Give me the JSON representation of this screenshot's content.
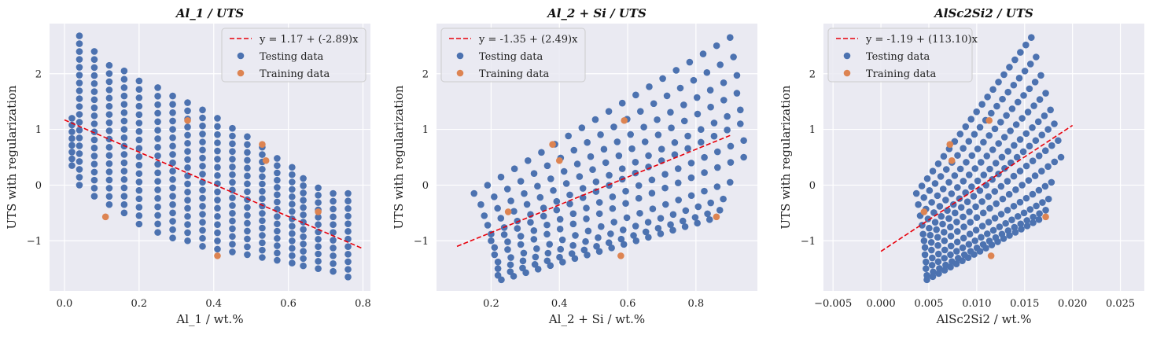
{
  "colors": {
    "plot_bg": "#EAEAF2",
    "grid": "#FFFFFF",
    "testing": "#4C72B0",
    "training": "#DD8452",
    "fit_line": "#E8000B",
    "legend_bg": "#EAEAF2",
    "legend_border": "#CCCCCC"
  },
  "chart_data": [
    {
      "type": "scatter",
      "title": "Al_1 / UTS",
      "xlabel": "Al_1 / wt.%",
      "ylabel": "UTS with regularization",
      "xlim": [
        -0.04,
        0.82
      ],
      "ylim": [
        -1.9,
        2.9
      ],
      "xticks": [
        0.0,
        0.2,
        0.4,
        0.6,
        0.8
      ],
      "xtick_labels": [
        "0.0",
        "0.2",
        "0.4",
        "0.6",
        "0.8"
      ],
      "yticks": [
        -1,
        0,
        1,
        2
      ],
      "ytick_labels": [
        "−1",
        "0",
        "1",
        "2"
      ],
      "grid": true,
      "legend_position": "top-right",
      "fit": {
        "label": "y = 1.17 + (-2.89)x",
        "intercept": 1.17,
        "slope": -2.89,
        "x_range": [
          0.0,
          0.8
        ]
      },
      "series": [
        {
          "name": "Testing data",
          "columns": [
            {
              "x": 0.02,
              "y_min": 0.35,
              "y_max": 1.2,
              "n": 8
            },
            {
              "x": 0.04,
              "y_min": 0.0,
              "y_max": 2.68,
              "n": 20
            },
            {
              "x": 0.08,
              "y_min": -0.2,
              "y_max": 2.4,
              "n": 19
            },
            {
              "x": 0.12,
              "y_min": -0.35,
              "y_max": 2.15,
              "n": 18
            },
            {
              "x": 0.16,
              "y_min": -0.5,
              "y_max": 2.05,
              "n": 18
            },
            {
              "x": 0.2,
              "y_min": -0.7,
              "y_max": 1.87,
              "n": 18
            },
            {
              "x": 0.25,
              "y_min": -0.85,
              "y_max": 1.75,
              "n": 18
            },
            {
              "x": 0.29,
              "y_min": -0.95,
              "y_max": 1.6,
              "n": 18
            },
            {
              "x": 0.33,
              "y_min": -1.0,
              "y_max": 1.48,
              "n": 18
            },
            {
              "x": 0.37,
              "y_min": -1.1,
              "y_max": 1.35,
              "n": 18
            },
            {
              "x": 0.41,
              "y_min": -1.15,
              "y_max": 1.2,
              "n": 17
            },
            {
              "x": 0.45,
              "y_min": -1.2,
              "y_max": 1.02,
              "n": 17
            },
            {
              "x": 0.49,
              "y_min": -1.25,
              "y_max": 0.87,
              "n": 16
            },
            {
              "x": 0.53,
              "y_min": -1.3,
              "y_max": 0.68,
              "n": 16
            },
            {
              "x": 0.57,
              "y_min": -1.35,
              "y_max": 0.48,
              "n": 15
            },
            {
              "x": 0.61,
              "y_min": -1.4,
              "y_max": 0.32,
              "n": 14
            },
            {
              "x": 0.64,
              "y_min": -1.45,
              "y_max": 0.12,
              "n": 13
            },
            {
              "x": 0.68,
              "y_min": -1.5,
              "y_max": -0.05,
              "n": 12
            },
            {
              "x": 0.72,
              "y_min": -1.55,
              "y_max": -0.15,
              "n": 11
            },
            {
              "x": 0.76,
              "y_min": -1.65,
              "y_max": -0.15,
              "n": 12
            }
          ]
        },
        {
          "name": "Training data",
          "x": [
            0.11,
            0.33,
            0.41,
            0.53,
            0.54,
            0.68
          ],
          "y": [
            -0.57,
            1.16,
            -1.27,
            0.73,
            0.44,
            -0.48
          ]
        }
      ]
    },
    {
      "type": "scatter",
      "title": "Al_2 + Si / UTS",
      "xlabel": "Al_2 + Si / wt.%",
      "ylabel": "UTS with regularization",
      "xlim": [
        0.04,
        0.98
      ],
      "ylim": [
        -1.9,
        2.9
      ],
      "xticks": [
        0.2,
        0.4,
        0.6,
        0.8
      ],
      "xtick_labels": [
        "0.2",
        "0.4",
        "0.6",
        "0.8"
      ],
      "yticks": [
        -1,
        0,
        1,
        2
      ],
      "ytick_labels": [
        "−1",
        "0",
        "1",
        "2"
      ],
      "grid": true,
      "legend_position": "top-left",
      "fit": {
        "label": "y = -1.35 + (2.49)x",
        "intercept": -1.35,
        "slope": 2.49,
        "x_range": [
          0.1,
          0.9
        ]
      },
      "series": [
        {
          "name": "Testing data",
          "rows": [
            {
              "x_start": 0.15,
              "y_start": -0.15,
              "x_end": 0.9,
              "y_end": 2.65,
              "n": 20
            },
            {
              "x_start": 0.17,
              "y_start": -0.35,
              "x_end": 0.91,
              "y_end": 2.3,
              "n": 20
            },
            {
              "x_start": 0.18,
              "y_start": -0.55,
              "x_end": 0.92,
              "y_end": 1.97,
              "n": 20
            },
            {
              "x_start": 0.19,
              "y_start": -0.72,
              "x_end": 0.92,
              "y_end": 1.65,
              "n": 20
            },
            {
              "x_start": 0.2,
              "y_start": -0.88,
              "x_end": 0.93,
              "y_end": 1.35,
              "n": 20
            },
            {
              "x_start": 0.2,
              "y_start": -1.0,
              "x_end": 0.93,
              "y_end": 1.1,
              "n": 20
            },
            {
              "x_start": 0.21,
              "y_start": -1.12,
              "x_end": 0.94,
              "y_end": 0.8,
              "n": 20
            },
            {
              "x_start": 0.21,
              "y_start": -1.25,
              "x_end": 0.94,
              "y_end": 0.5,
              "n": 20
            },
            {
              "x_start": 0.22,
              "y_start": -1.38,
              "x_end": 0.9,
              "y_end": 0.05,
              "n": 19
            },
            {
              "x_start": 0.22,
              "y_start": -1.5,
              "x_end": 0.88,
              "y_end": -0.25,
              "n": 19
            },
            {
              "x_start": 0.22,
              "y_start": -1.62,
              "x_end": 0.87,
              "y_end": -0.45,
              "n": 19
            },
            {
              "x_start": 0.23,
              "y_start": -1.7,
              "x_end": 0.84,
              "y_end": -0.62,
              "n": 18
            }
          ]
        },
        {
          "name": "Training data",
          "x": [
            0.25,
            0.38,
            0.4,
            0.58,
            0.59,
            0.86
          ],
          "y": [
            -0.48,
            0.73,
            0.44,
            -1.27,
            1.16,
            -0.57
          ]
        }
      ]
    },
    {
      "type": "scatter",
      "title": "AlSc2Si2 / UTS",
      "xlabel": "AlSc2Si2 / wt.%",
      "ylabel": "UTS with regularization",
      "xlim": [
        -0.006,
        0.0275
      ],
      "ylim": [
        -1.9,
        2.9
      ],
      "xticks": [
        -0.005,
        0.0,
        0.005,
        0.01,
        0.015,
        0.02,
        0.025
      ],
      "xtick_labels": [
        "−0.005",
        "0.000",
        "0.005",
        "0.010",
        "0.015",
        "0.020",
        "0.025"
      ],
      "yticks": [
        -1,
        0,
        1,
        2
      ],
      "ytick_labels": [
        "−1",
        "0",
        "1",
        "2"
      ],
      "grid": true,
      "legend_position": "top-left",
      "fit": {
        "label": "y = -1.19 + (113.10)x",
        "intercept": -1.19,
        "slope": 113.1,
        "x_range": [
          0.0,
          0.02
        ]
      },
      "series": [
        {
          "name": "Testing data",
          "rows": [
            {
              "x_start": 0.0037,
              "y_start": -0.15,
              "x_end": 0.0157,
              "y_end": 2.65,
              "n": 22
            },
            {
              "x_start": 0.0039,
              "y_start": -0.35,
              "x_end": 0.0162,
              "y_end": 2.3,
              "n": 22
            },
            {
              "x_start": 0.0041,
              "y_start": -0.55,
              "x_end": 0.0167,
              "y_end": 1.97,
              "n": 22
            },
            {
              "x_start": 0.0043,
              "y_start": -0.72,
              "x_end": 0.0172,
              "y_end": 1.65,
              "n": 22
            },
            {
              "x_start": 0.0044,
              "y_start": -0.88,
              "x_end": 0.0177,
              "y_end": 1.35,
              "n": 22
            },
            {
              "x_start": 0.0045,
              "y_start": -1.0,
              "x_end": 0.0181,
              "y_end": 1.1,
              "n": 22
            },
            {
              "x_start": 0.0046,
              "y_start": -1.12,
              "x_end": 0.0185,
              "y_end": 0.8,
              "n": 22
            },
            {
              "x_start": 0.0046,
              "y_start": -1.25,
              "x_end": 0.0188,
              "y_end": 0.5,
              "n": 22
            },
            {
              "x_start": 0.0047,
              "y_start": -1.38,
              "x_end": 0.0178,
              "y_end": 0.05,
              "n": 21
            },
            {
              "x_start": 0.0047,
              "y_start": -1.5,
              "x_end": 0.0175,
              "y_end": -0.25,
              "n": 21
            },
            {
              "x_start": 0.0048,
              "y_start": -1.62,
              "x_end": 0.0172,
              "y_end": -0.45,
              "n": 20
            },
            {
              "x_start": 0.0048,
              "y_start": -1.7,
              "x_end": 0.0165,
              "y_end": -0.62,
              "n": 20
            }
          ]
        },
        {
          "name": "Training data",
          "x": [
            0.0045,
            0.0072,
            0.0074,
            0.0113,
            0.0115,
            0.0172
          ],
          "y": [
            -0.48,
            0.73,
            0.44,
            1.16,
            -1.27,
            -0.57
          ]
        }
      ]
    }
  ]
}
